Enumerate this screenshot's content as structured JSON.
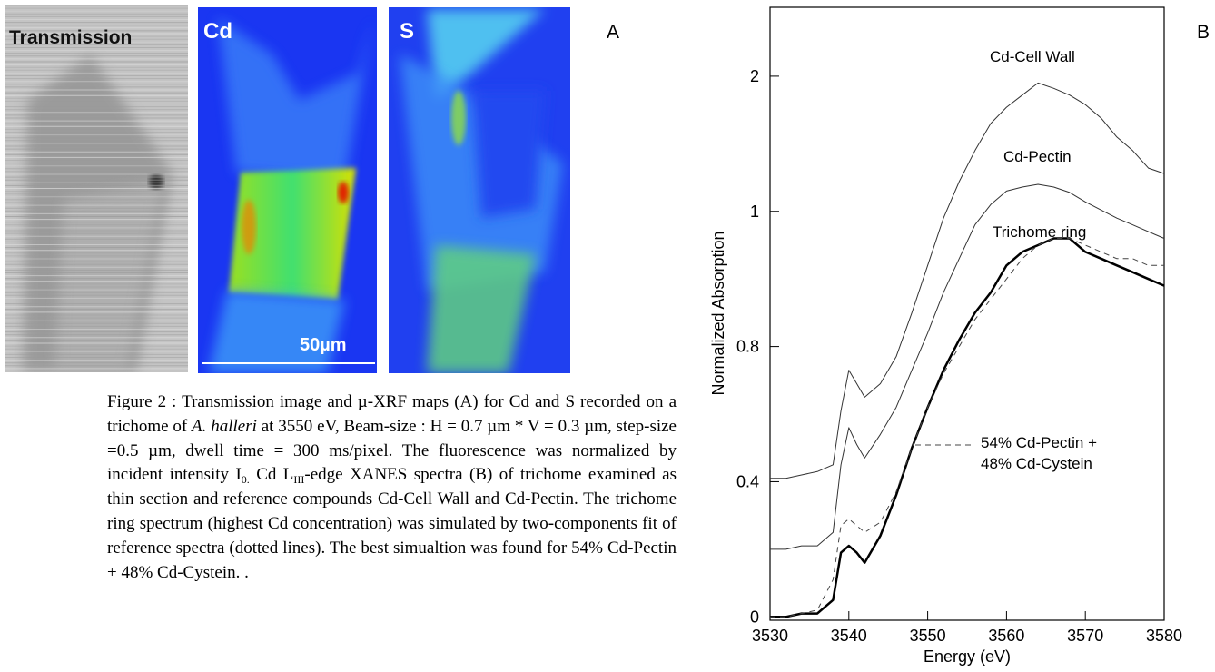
{
  "panel_a": {
    "letter": "A",
    "labels": [
      "Transmission",
      "Cd",
      "S"
    ],
    "scale_bar": "50µm"
  },
  "caption": [
    "Figure 2 : Transmission image and µ-XRF maps (A) for Cd and S recorded on a trichome of ",
    "A. halleri",
    " at 3550 eV, Beam-size : H = 0.7 µm * V = 0.3 µm, step-size =0.5 µm, dwell time = 300 ms/pixel. The fluorescence was normalized by incident intensity I",
    "0.",
    " Cd L",
    "III",
    "-edge XANES spectra (B) of trichome examined as thin section and reference compounds Cd-Cell Wall and Cd-Pectin. The trichome ring spectrum (highest Cd concentration) was simulated by two-components fit of reference spectra (dotted lines). The best simualtion was found for 54% Cd-Pectin + 48% Cd-Cystein. ."
  ],
  "chart_data": {
    "type": "line",
    "panel_letter": "B",
    "x_label": "Energy (eV)",
    "y_label": "Normalized Absorption",
    "x": [
      3530,
      3532,
      3534,
      3536,
      3538,
      3539,
      3540,
      3541,
      3542,
      3544,
      3546,
      3548,
      3550,
      3552,
      3554,
      3556,
      3558,
      3560,
      3562,
      3564,
      3566,
      3568,
      3570,
      3572,
      3574,
      3576,
      3578,
      3580
    ],
    "xlim": [
      3530,
      3580
    ],
    "xticks": [
      3530,
      3540,
      3550,
      3560,
      3570,
      3580
    ],
    "ylim": [
      -0.01,
      2.51
    ],
    "yticks": [
      0,
      0.4,
      0.8,
      1,
      2
    ],
    "series": [
      {
        "name": "Cd-Cell Wall",
        "color": "#333333",
        "linewidth": 1,
        "dashed": false,
        "values": [
          0.41,
          0.41,
          0.42,
          0.43,
          0.45,
          0.61,
          0.73,
          0.69,
          0.65,
          0.69,
          0.77,
          0.85,
          0.92,
          0.99,
          1.22,
          1.45,
          1.65,
          1.77,
          1.86,
          1.95,
          1.91,
          1.86,
          1.79,
          1.69,
          1.55,
          1.45,
          1.32,
          1.28
        ]
      },
      {
        "name": "Cd-Pectin",
        "color": "#333333",
        "linewidth": 1,
        "dashed": false,
        "values": [
          0.2,
          0.2,
          0.21,
          0.21,
          0.25,
          0.45,
          0.56,
          0.51,
          0.47,
          0.54,
          0.62,
          0.73,
          0.82,
          0.88,
          0.93,
          0.98,
          1.05,
          1.15,
          1.18,
          1.2,
          1.18,
          1.14,
          1.07,
          1.01,
          0.99,
          0.98,
          0.97,
          0.96
        ]
      },
      {
        "name": "Trichome ring",
        "color": "#000000",
        "linewidth": 2.5,
        "dashed": false,
        "values": [
          0,
          0,
          0.01,
          0.01,
          0.05,
          0.19,
          0.21,
          0.19,
          0.16,
          0.24,
          0.36,
          0.5,
          0.62,
          0.73,
          0.81,
          0.85,
          0.88,
          0.92,
          0.94,
          0.95,
          0.96,
          0.96,
          0.94,
          0.93,
          0.92,
          0.91,
          0.9,
          0.89
        ]
      },
      {
        "name": "54% Cd-Pectin + 48% Cd-Cystein",
        "color": "#444444",
        "linewidth": 1,
        "dashed": true,
        "values": [
          0,
          0,
          0.01,
          0.02,
          0.11,
          0.27,
          0.29,
          0.27,
          0.25,
          0.28,
          0.37,
          0.5,
          0.62,
          0.72,
          0.8,
          0.84,
          0.87,
          0.9,
          0.93,
          0.95,
          0.96,
          0.96,
          0.95,
          0.94,
          0.93,
          0.93,
          0.92,
          0.92
        ]
      }
    ]
  }
}
